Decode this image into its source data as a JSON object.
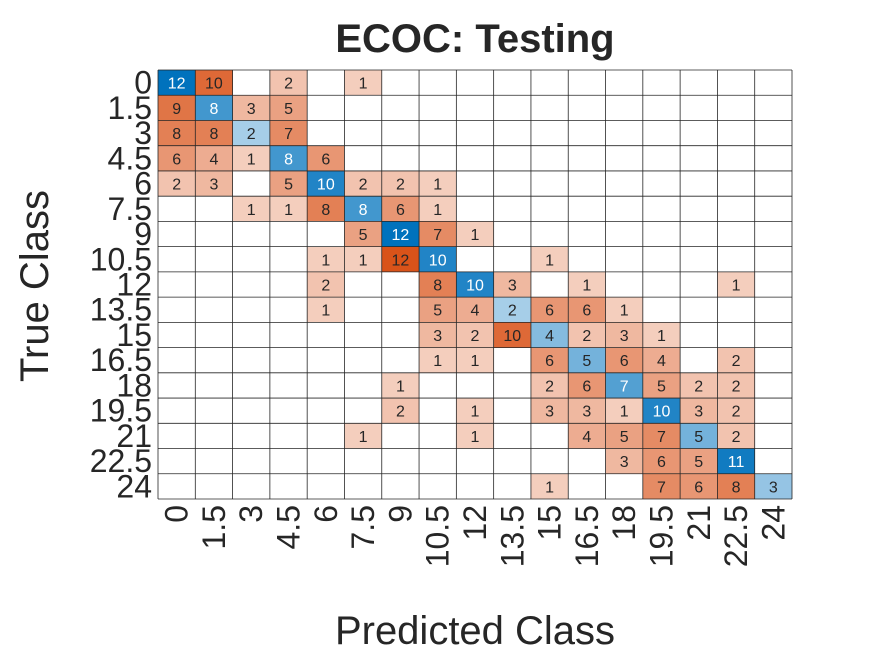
{
  "chart_data": {
    "type": "heatmap",
    "title": "ECOC: Testing",
    "xlabel": "Predicted Class",
    "ylabel": "True Class",
    "x_labels": [
      "0",
      "1.5",
      "3",
      "4.5",
      "6",
      "7.5",
      "9",
      "10.5",
      "12",
      "13.5",
      "15",
      "16.5",
      "18",
      "19.5",
      "21",
      "22.5",
      "24"
    ],
    "y_labels": [
      "0",
      "1.5",
      "3",
      "4.5",
      "6",
      "7.5",
      "9",
      "10.5",
      "12",
      "13.5",
      "15",
      "16.5",
      "18",
      "19.5",
      "21",
      "22.5",
      "24"
    ],
    "matrix": [
      [
        12,
        10,
        0,
        2,
        0,
        1,
        0,
        0,
        0,
        0,
        0,
        0,
        0,
        0,
        0,
        0,
        0
      ],
      [
        9,
        8,
        3,
        5,
        0,
        0,
        0,
        0,
        0,
        0,
        0,
        0,
        0,
        0,
        0,
        0,
        0
      ],
      [
        8,
        8,
        2,
        7,
        0,
        0,
        0,
        0,
        0,
        0,
        0,
        0,
        0,
        0,
        0,
        0,
        0
      ],
      [
        6,
        4,
        1,
        8,
        6,
        0,
        0,
        0,
        0,
        0,
        0,
        0,
        0,
        0,
        0,
        0,
        0
      ],
      [
        2,
        3,
        0,
        5,
        10,
        2,
        2,
        1,
        0,
        0,
        0,
        0,
        0,
        0,
        0,
        0,
        0
      ],
      [
        0,
        0,
        1,
        1,
        8,
        8,
        6,
        1,
        0,
        0,
        0,
        0,
        0,
        0,
        0,
        0,
        0
      ],
      [
        0,
        0,
        0,
        0,
        0,
        5,
        12,
        7,
        1,
        0,
        0,
        0,
        0,
        0,
        0,
        0,
        0
      ],
      [
        0,
        0,
        0,
        0,
        1,
        1,
        12,
        10,
        0,
        0,
        1,
        0,
        0,
        0,
        0,
        0,
        0
      ],
      [
        0,
        0,
        0,
        0,
        2,
        0,
        0,
        8,
        10,
        3,
        0,
        1,
        0,
        0,
        0,
        1,
        0
      ],
      [
        0,
        0,
        0,
        0,
        1,
        0,
        0,
        5,
        4,
        2,
        6,
        6,
        1,
        0,
        0,
        0,
        0
      ],
      [
        0,
        0,
        0,
        0,
        0,
        0,
        0,
        3,
        2,
        10,
        4,
        2,
        3,
        1,
        0,
        0,
        0
      ],
      [
        0,
        0,
        0,
        0,
        0,
        0,
        0,
        1,
        1,
        0,
        6,
        5,
        6,
        4,
        0,
        2,
        0
      ],
      [
        0,
        0,
        0,
        0,
        0,
        0,
        1,
        0,
        0,
        0,
        2,
        6,
        7,
        5,
        2,
        2,
        0
      ],
      [
        0,
        0,
        0,
        0,
        0,
        0,
        2,
        0,
        1,
        0,
        3,
        3,
        1,
        10,
        3,
        2,
        0
      ],
      [
        0,
        0,
        0,
        0,
        0,
        1,
        0,
        0,
        1,
        0,
        0,
        4,
        5,
        7,
        5,
        2,
        0
      ],
      [
        0,
        0,
        0,
        0,
        0,
        0,
        0,
        0,
        0,
        0,
        0,
        0,
        3,
        6,
        5,
        11,
        0
      ],
      [
        0,
        0,
        0,
        0,
        0,
        0,
        0,
        0,
        0,
        0,
        1,
        0,
        0,
        7,
        6,
        8,
        3
      ]
    ],
    "colors": {
      "diagonal": "#0072bd",
      "off_diagonal": "#d95319",
      "grid": "#262626",
      "text_dark": "#262626",
      "text_light": "#ffffff"
    }
  }
}
